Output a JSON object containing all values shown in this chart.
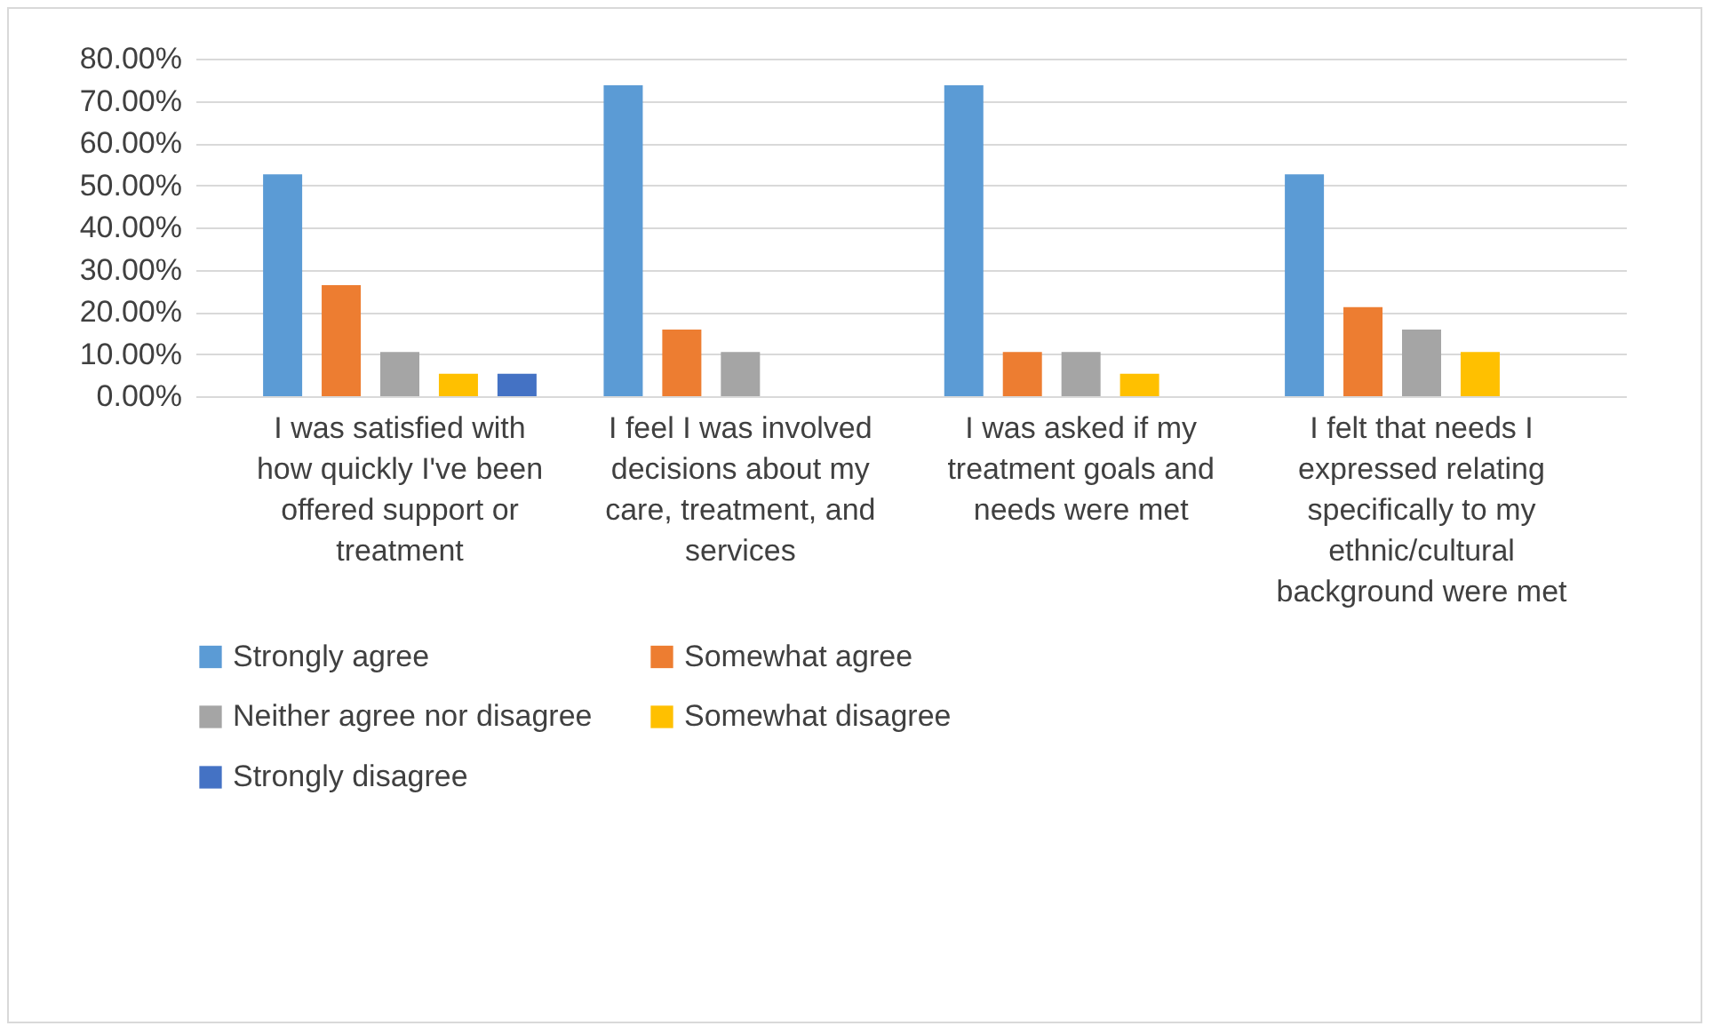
{
  "chart_data": {
    "type": "bar",
    "categories": [
      "I was satisfied with how quickly I've been offered support or treatment",
      "I feel I was involved decisions about my care, treatment, and services",
      "I was asked if my treatment goals and needs were met",
      "I felt that needs I expressed relating specifically to my ethnic/cultural background were met"
    ],
    "series": [
      {
        "name": "Strongly agree",
        "color": "#5b9bd5",
        "values": [
          52.6,
          73.7,
          73.7,
          52.6
        ]
      },
      {
        "name": "Somewhat agree",
        "color": "#ed7d31",
        "values": [
          26.3,
          15.8,
          10.5,
          21.1
        ]
      },
      {
        "name": "Neither agree nor disagree",
        "color": "#a5a5a5",
        "values": [
          10.5,
          10.5,
          10.5,
          15.8
        ]
      },
      {
        "name": "Somewhat disagree",
        "color": "#ffc000",
        "values": [
          5.3,
          null,
          5.3,
          10.5
        ]
      },
      {
        "name": "Strongly disagree",
        "color": "#4472c4",
        "values": [
          5.3,
          null,
          null,
          null
        ]
      }
    ],
    "ylim": [
      0,
      80
    ],
    "yticks": [
      {
        "value": 0,
        "label": "0.00%"
      },
      {
        "value": 10,
        "label": "10.00%"
      },
      {
        "value": 20,
        "label": "20.00%"
      },
      {
        "value": 30,
        "label": "30.00%"
      },
      {
        "value": 40,
        "label": "40.00%"
      },
      {
        "value": 50,
        "label": "50.00%"
      },
      {
        "value": 60,
        "label": "60.00%"
      },
      {
        "value": 70,
        "label": "70.00%"
      },
      {
        "value": 80,
        "label": "80.00%"
      }
    ],
    "grid": "y",
    "legend": "bottom"
  }
}
